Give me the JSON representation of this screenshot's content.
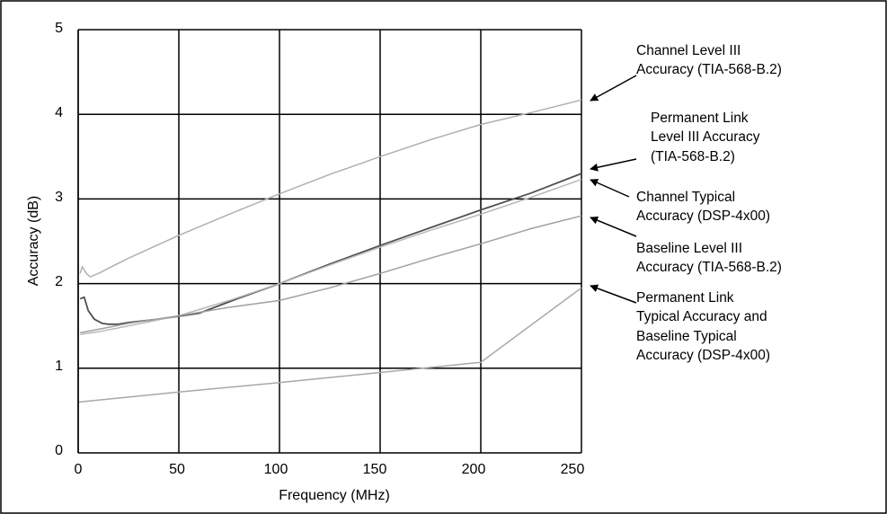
{
  "chart_data": {
    "type": "line",
    "xlabel": "Frequency (MHz)",
    "ylabel": "Accuracy (dB)",
    "xlim": [
      0,
      250
    ],
    "ylim": [
      0,
      5
    ],
    "x_ticks": [
      "0",
      "50",
      "100",
      "150",
      "200",
      "250"
    ],
    "y_ticks": [
      "0",
      "1",
      "2",
      "3",
      "4",
      "5"
    ],
    "grid": true,
    "legend": "right-side callouts with arrows",
    "series": [
      {
        "name": "Channel Level III Accuracy (TIA-568-B.2)",
        "color": "#b0b0b0",
        "points": [
          [
            1,
            2.12
          ],
          [
            2,
            2.2
          ],
          [
            4,
            2.12
          ],
          [
            6,
            2.08
          ],
          [
            10,
            2.12
          ],
          [
            25,
            2.3
          ],
          [
            50,
            2.57
          ],
          [
            75,
            2.82
          ],
          [
            100,
            3.06
          ],
          [
            125,
            3.29
          ],
          [
            150,
            3.5
          ],
          [
            175,
            3.7
          ],
          [
            200,
            3.88
          ],
          [
            225,
            4.02
          ],
          [
            250,
            4.17
          ]
        ]
      },
      {
        "name": "Permanent Link Level III Accuracy (TIA-568-B.2)",
        "color": "#505050",
        "points": [
          [
            1,
            1.82
          ],
          [
            3,
            1.84
          ],
          [
            5,
            1.68
          ],
          [
            8,
            1.58
          ],
          [
            12,
            1.53
          ],
          [
            15,
            1.52
          ],
          [
            20,
            1.52
          ],
          [
            25,
            1.54
          ],
          [
            40,
            1.58
          ],
          [
            60,
            1.65
          ],
          [
            80,
            1.83
          ],
          [
            100,
            2.0
          ],
          [
            125,
            2.23
          ],
          [
            150,
            2.45
          ],
          [
            175,
            2.66
          ],
          [
            200,
            2.87
          ],
          [
            225,
            3.07
          ],
          [
            250,
            3.3
          ]
        ]
      },
      {
        "name": "Channel Typical Accuracy (DSP-4x00)",
        "color": "#b8b8b8",
        "points": [
          [
            1,
            1.4
          ],
          [
            10,
            1.43
          ],
          [
            25,
            1.5
          ],
          [
            50,
            1.62
          ],
          [
            75,
            1.8
          ],
          [
            100,
            2.0
          ],
          [
            125,
            2.22
          ],
          [
            150,
            2.43
          ],
          [
            175,
            2.63
          ],
          [
            200,
            2.82
          ],
          [
            225,
            3.02
          ],
          [
            250,
            3.23
          ]
        ]
      },
      {
        "name": "Baseline Level III Accuracy (TIA-568-B.2)",
        "color": "#a0a0a0",
        "points": [
          [
            1,
            1.42
          ],
          [
            10,
            1.46
          ],
          [
            25,
            1.53
          ],
          [
            50,
            1.62
          ],
          [
            75,
            1.72
          ],
          [
            100,
            1.8
          ],
          [
            125,
            1.95
          ],
          [
            150,
            2.12
          ],
          [
            175,
            2.3
          ],
          [
            200,
            2.47
          ],
          [
            225,
            2.65
          ],
          [
            250,
            2.8
          ]
        ]
      },
      {
        "name": "Permanent Link Typical Accuracy and Baseline Typical Accuracy (DSP-4x00)",
        "color": "#a8a8a8",
        "points": [
          [
            0,
            0.6
          ],
          [
            50,
            0.72
          ],
          [
            100,
            0.83
          ],
          [
            150,
            0.95
          ],
          [
            200,
            1.07
          ],
          [
            250,
            1.95
          ]
        ]
      }
    ]
  },
  "annotations": [
    {
      "lines": [
        "Channel Level III",
        "Accuracy (TIA-568-B.2)"
      ]
    },
    {
      "lines": [
        "Permanent Link",
        "Level III Accuracy",
        "(TIA-568-B.2)"
      ]
    },
    {
      "lines": [
        "Channel Typical",
        "Accuracy (DSP-4x00)"
      ]
    },
    {
      "lines": [
        "Baseline Level III",
        "Accuracy (TIA-568-B.2)"
      ]
    },
    {
      "lines": [
        "Permanent Link",
        "Typical Accuracy and",
        "Baseline Typical",
        "Accuracy (DSP-4x00)"
      ]
    }
  ]
}
